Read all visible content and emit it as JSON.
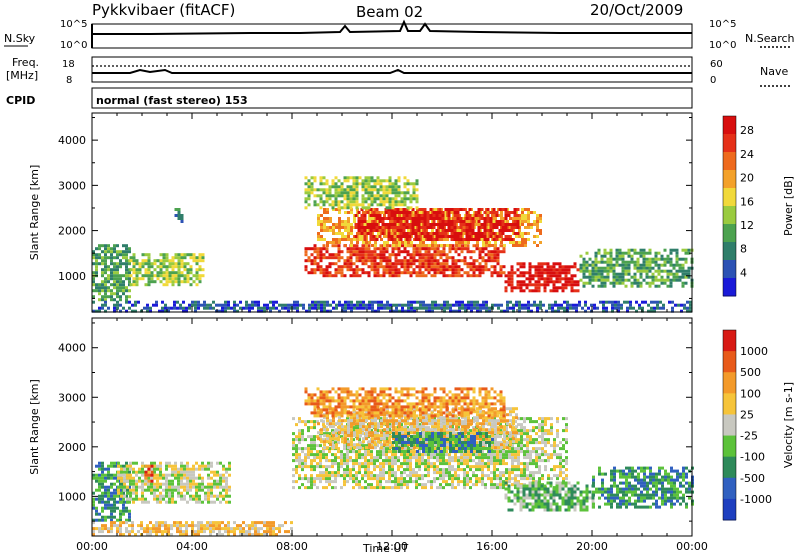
{
  "header": {
    "station": "Pykkvibaer (fitACF)",
    "beam": "Beam 02",
    "date": "20/Oct/2009"
  },
  "strips": {
    "nsky_label": "N.Sky",
    "nsky_top": "10^5",
    "nsky_bottom": "10^0",
    "nsearch_top": "10^5",
    "nsearch_bottom": "10^0",
    "nsearch_label": "N.Search",
    "freq_label_1": "Freq.",
    "freq_label_2": "[MHz]",
    "freq_top": "18",
    "freq_bottom": "8",
    "nave_top": "60",
    "nave_bottom": "0",
    "nave_label": "Nave",
    "cpid_label": "CPID",
    "cpid_text": "normal (fast stereo) 153"
  },
  "chart_data": [
    {
      "type": "heatmap",
      "panel": "power",
      "ylabel": "Slant Range [km]",
      "xlabel": "Time UT",
      "x_ticks": [
        "00:00",
        "04:00",
        "08:00",
        "12:00",
        "16:00",
        "20:00",
        "00:00"
      ],
      "y_ticks": [
        1000,
        2000,
        3000,
        4000
      ],
      "ylim": [
        200,
        4600
      ],
      "xlim_hours": [
        0,
        24
      ],
      "colorbar_label": "Power [dB]",
      "colorbar_ticks": [
        "4",
        "8",
        "12",
        "16",
        "20",
        "24",
        "28"
      ],
      "colorscale": [
        "#1a1ad8",
        "#2c52b4",
        "#2f7e6a",
        "#4ca24f",
        "#9acb3f",
        "#f1d93a",
        "#f3a12a",
        "#ee6a1d",
        "#e53018",
        "#d80e0e"
      ],
      "regions": [
        {
          "t": [
            0.0,
            1.5
          ],
          "r": [
            500,
            1700
          ],
          "level": 3
        },
        {
          "t": [
            1.5,
            4.5
          ],
          "r": [
            800,
            1500
          ],
          "level": 4
        },
        {
          "t": [
            3.3,
            3.6
          ],
          "r": [
            2200,
            2500
          ],
          "level": 2
        },
        {
          "t": [
            8.5,
            16.5
          ],
          "r": [
            1000,
            1700
          ],
          "level": 8
        },
        {
          "t": [
            9.0,
            18.0
          ],
          "r": [
            1700,
            2500
          ],
          "level": 6
        },
        {
          "t": [
            10.5,
            17.0
          ],
          "r": [
            1800,
            2500
          ],
          "level": 9
        },
        {
          "t": [
            16.5,
            19.5
          ],
          "r": [
            700,
            1300
          ],
          "level": 9
        },
        {
          "t": [
            8.5,
            13.0
          ],
          "r": [
            2500,
            3200
          ],
          "level": 4
        },
        {
          "t": [
            19.5,
            24.0
          ],
          "r": [
            800,
            1600
          ],
          "level": 3
        },
        {
          "t": [
            0.0,
            24.0
          ],
          "r": [
            250,
            450
          ],
          "level": 1
        }
      ]
    },
    {
      "type": "heatmap",
      "panel": "velocity",
      "ylabel": "Slant Range [km]",
      "xlabel": "Time UT",
      "x_ticks": [
        "00:00",
        "04:00",
        "08:00",
        "12:00",
        "16:00",
        "20:00",
        "00:00"
      ],
      "y_ticks": [
        1000,
        2000,
        3000,
        4000
      ],
      "ylim": [
        200,
        4600
      ],
      "xlim_hours": [
        0,
        24
      ],
      "colorbar_label": "Velocity [m s-1]",
      "colorbar_ticks": [
        "1000",
        "500",
        "100",
        "25",
        "-25",
        "-100",
        "-500",
        "-1000"
      ],
      "colorscale": [
        "#1e3fbf",
        "#3060c0",
        "#2e8a5a",
        "#5cc23a",
        "#c8c8c0",
        "#f6c43a",
        "#f39a2a",
        "#e85a1a",
        "#d81a14"
      ],
      "regions": [
        {
          "t": [
            0.0,
            1.5
          ],
          "r": [
            500,
            1700
          ],
          "level": 2
        },
        {
          "t": [
            1.0,
            5.5
          ],
          "r": [
            900,
            1700
          ],
          "level": 4
        },
        {
          "t": [
            2.1,
            2.4
          ],
          "r": [
            1300,
            1700
          ],
          "level": 7
        },
        {
          "t": [
            8.0,
            19.0
          ],
          "r": [
            1200,
            2600
          ],
          "level": 4
        },
        {
          "t": [
            9.0,
            17.0
          ],
          "r": [
            2000,
            2800
          ],
          "level": 5
        },
        {
          "t": [
            12.0,
            16.0
          ],
          "r": [
            1900,
            2300
          ],
          "level": 2
        },
        {
          "t": [
            8.5,
            16.5
          ],
          "r": [
            2600,
            3200
          ],
          "level": 6
        },
        {
          "t": [
            16.5,
            20.0
          ],
          "r": [
            700,
            1300
          ],
          "level": 3
        },
        {
          "t": [
            20.0,
            24.0
          ],
          "r": [
            800,
            1600
          ],
          "level": 2
        },
        {
          "t": [
            0.0,
            8.0
          ],
          "r": [
            250,
            500
          ],
          "level": 5
        }
      ]
    }
  ]
}
